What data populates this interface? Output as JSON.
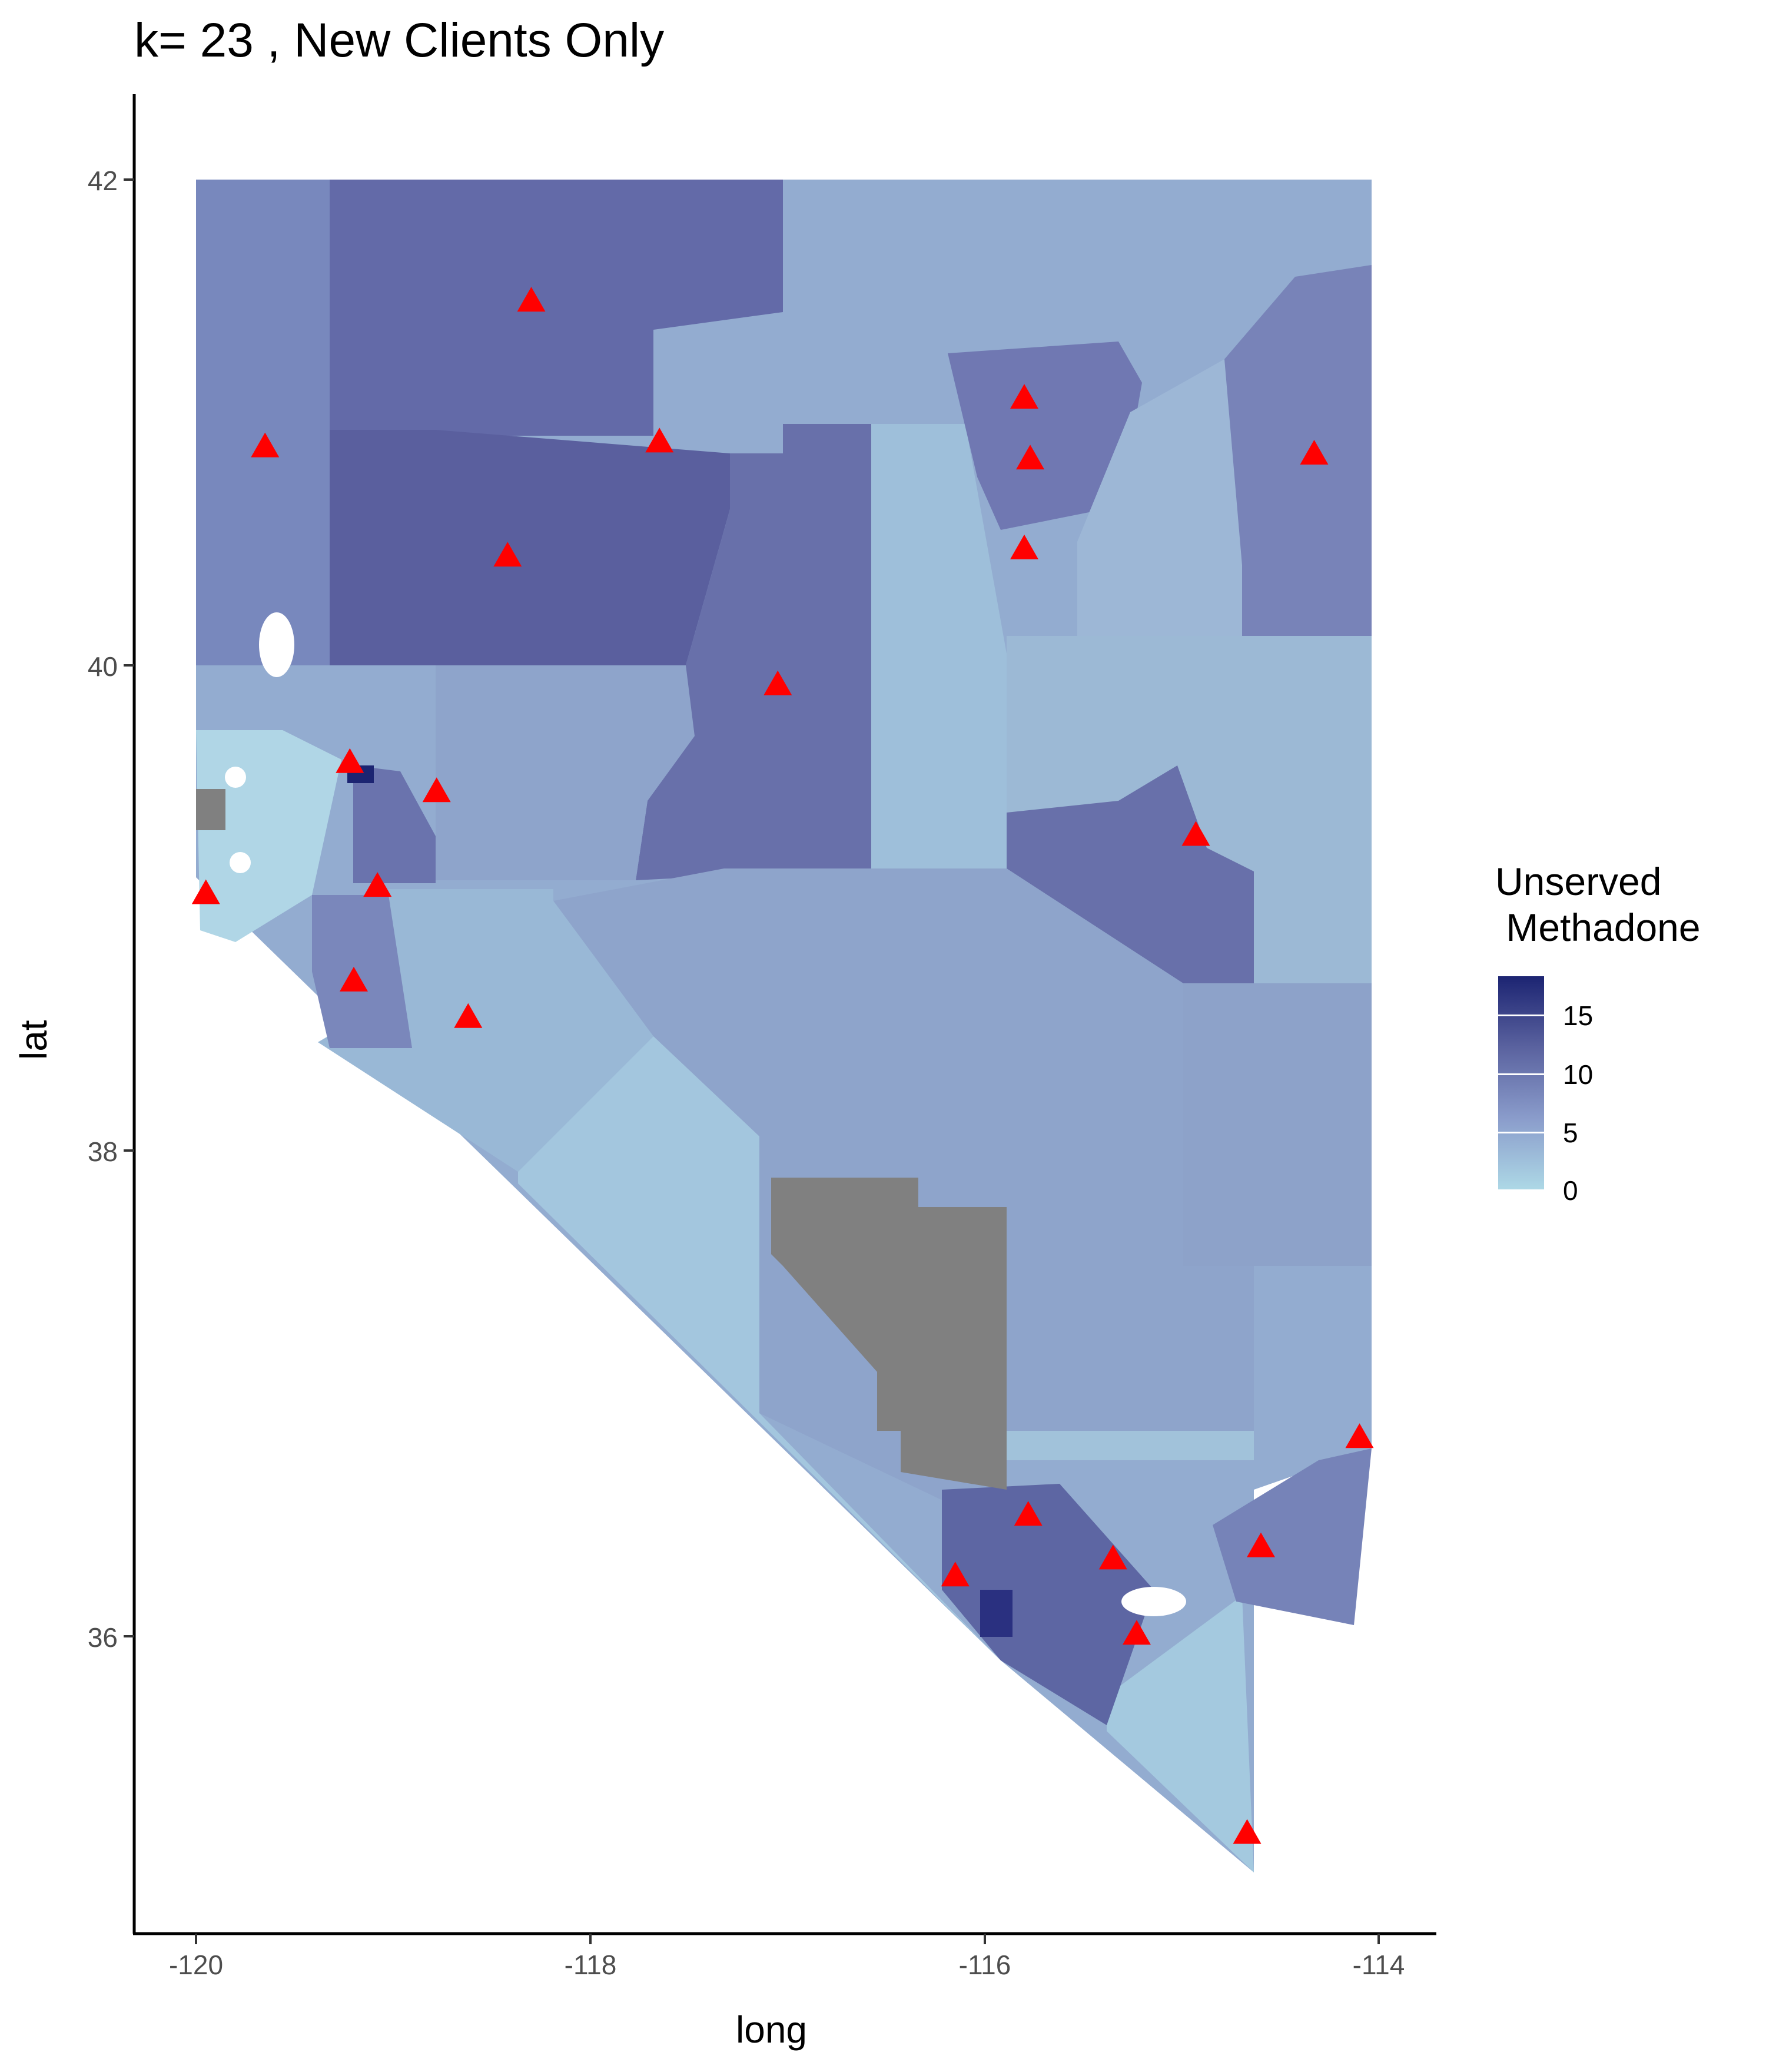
{
  "title": "k= 23 , New Clients Only",
  "xlabel": "long",
  "ylabel": "lat",
  "x_ticks": [
    "-120",
    "-118",
    "-116",
    "-114"
  ],
  "y_ticks": [
    "42",
    "40",
    "38",
    "36"
  ],
  "legend": {
    "title": "Unserved\n Methadone",
    "ticks": [
      "15",
      "10",
      "5",
      "0"
    ],
    "colors": {
      "low": "#add8e6",
      "high": "#1c2472"
    }
  },
  "chart_data": {
    "type": "map",
    "xlabel": "long",
    "ylabel": "lat",
    "xlim": [
      -120.3,
      -113.7
    ],
    "ylim": [
      34.8,
      42.3
    ],
    "x_ticks": [
      -120,
      -118,
      -116,
      -114
    ],
    "y_ticks": [
      42,
      40,
      38,
      36
    ],
    "fill_scale": {
      "name": "Unserved Methadone",
      "min": 0,
      "max": 18,
      "ticks": [
        0,
        5,
        10,
        15
      ],
      "low": "#add8e6",
      "high": "#1c2472",
      "na_color": "#808080"
    },
    "sites": [
      {
        "long": -119.65,
        "lat": 40.9
      },
      {
        "long": -118.3,
        "lat": 41.5
      },
      {
        "long": -117.65,
        "lat": 40.92
      },
      {
        "long": -118.42,
        "lat": 40.45
      },
      {
        "long": -115.8,
        "lat": 41.1
      },
      {
        "long": -115.77,
        "lat": 40.85
      },
      {
        "long": -115.8,
        "lat": 40.48
      },
      {
        "long": -114.33,
        "lat": 40.87
      },
      {
        "long": -117.05,
        "lat": 39.92
      },
      {
        "long": -119.22,
        "lat": 39.6
      },
      {
        "long": -118.78,
        "lat": 39.48
      },
      {
        "long": -114.93,
        "lat": 39.3
      },
      {
        "long": -119.95,
        "lat": 39.06
      },
      {
        "long": -119.08,
        "lat": 39.09
      },
      {
        "long": -119.2,
        "lat": 38.7
      },
      {
        "long": -118.62,
        "lat": 38.55
      },
      {
        "long": -114.1,
        "lat": 36.82
      },
      {
        "long": -115.78,
        "lat": 36.5
      },
      {
        "long": -114.6,
        "lat": 36.37
      },
      {
        "long": -115.35,
        "lat": 36.32
      },
      {
        "long": -116.15,
        "lat": 36.25
      },
      {
        "long": -115.23,
        "lat": 36.01
      },
      {
        "long": -114.67,
        "lat": 35.19
      }
    ]
  }
}
